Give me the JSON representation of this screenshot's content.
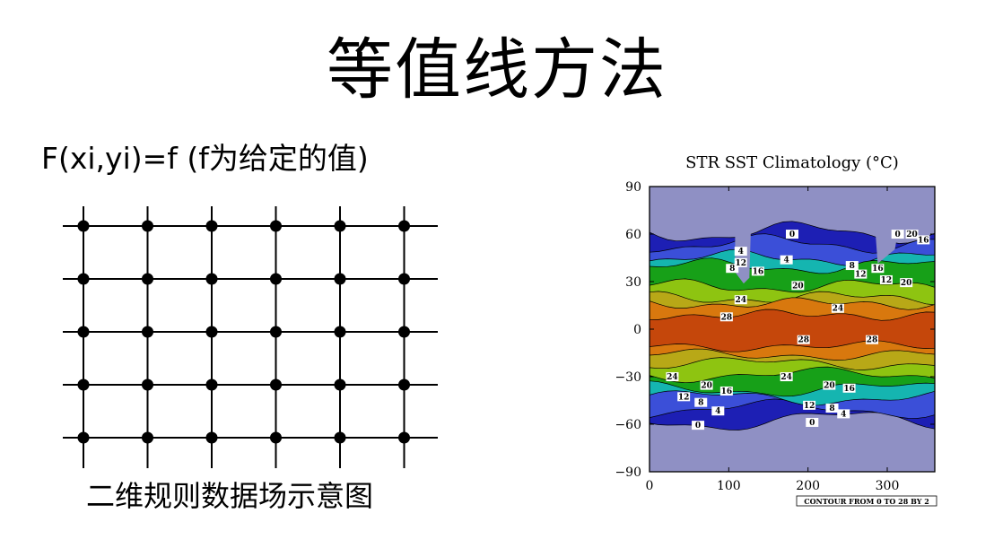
{
  "slide": {
    "title": "等值线方法",
    "formula": "F(xi,yi)=f (f为给定的值)",
    "caption": "二维规则数据场示意图"
  },
  "grid_diagram": {
    "rows": 5,
    "cols": 6
  },
  "sst_map": {
    "title": "STR SST Climatology (°C)",
    "y_ticks": [
      "90",
      "60",
      "30",
      "0",
      "−30",
      "−60",
      "−90"
    ],
    "x_ticks": [
      "0",
      "100",
      "200",
      "300"
    ],
    "footer": "CONTOUR FROM 0 TO 28 BY 2",
    "contour_labels": [
      "0",
      "4",
      "8",
      "12",
      "16",
      "20",
      "24",
      "28",
      "0",
      "4",
      "8",
      "12",
      "16",
      "20",
      "24",
      "28",
      "4",
      "0",
      "12",
      "16",
      "20",
      "24",
      "28",
      "8",
      "12",
      "16",
      "20",
      "24",
      "0",
      "4",
      "8",
      "20",
      "16",
      "12"
    ],
    "colors": {
      "land": "#8f90c4",
      "cold": "#1d1fb4",
      "cool": "#3b4fd8",
      "teal": "#15b5b0",
      "green": "#17a018",
      "lime": "#8ec411",
      "olive": "#b8a817",
      "orange": "#d8780e",
      "hot": "#c5470b"
    }
  }
}
